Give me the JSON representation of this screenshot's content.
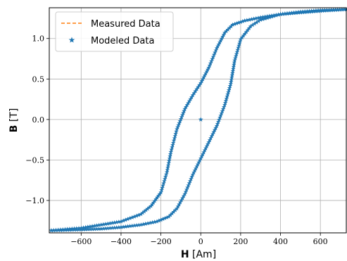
{
  "chart_data": {
    "type": "line",
    "title": "",
    "xlabel_bold": "H",
    "xlabel_unit": "[Am]",
    "ylabel_bold": "B",
    "ylabel_unit": "[T]",
    "xlim": [
      -760,
      730
    ],
    "ylim": [
      -1.4,
      1.38
    ],
    "grid": true,
    "legend_position": "top-left",
    "x_ticks": [
      {
        "value": -600,
        "label": "−600"
      },
      {
        "value": -400,
        "label": "−400"
      },
      {
        "value": -200,
        "label": "−200"
      },
      {
        "value": 0,
        "label": "0"
      },
      {
        "value": 200,
        "label": "200"
      },
      {
        "value": 400,
        "label": "400"
      },
      {
        "value": 600,
        "label": "600"
      }
    ],
    "y_ticks": [
      {
        "value": -1.0,
        "label": "−1.0"
      },
      {
        "value": -0.5,
        "label": "−0.5"
      },
      {
        "value": 0.0,
        "label": "0.0"
      },
      {
        "value": 0.5,
        "label": "0.5"
      },
      {
        "value": 1.0,
        "label": "1.0"
      }
    ],
    "series": [
      {
        "name": "Measured Data",
        "style": "dashed-line",
        "color": "#ff7f0e",
        "upper_branch": [
          [
            -750,
            -1.37
          ],
          [
            -600,
            -1.34
          ],
          [
            -400,
            -1.26
          ],
          [
            -300,
            -1.17
          ],
          [
            -250,
            -1.07
          ],
          [
            -200,
            -0.9
          ],
          [
            -170,
            -0.65
          ],
          [
            -150,
            -0.4
          ],
          [
            -120,
            -0.12
          ],
          [
            -80,
            0.13
          ],
          [
            -40,
            0.3
          ],
          [
            0,
            0.45
          ],
          [
            40,
            0.64
          ],
          [
            80,
            0.88
          ],
          [
            120,
            1.07
          ],
          [
            160,
            1.17
          ],
          [
            220,
            1.22
          ],
          [
            300,
            1.26
          ],
          [
            400,
            1.3
          ],
          [
            500,
            1.32
          ],
          [
            600,
            1.34
          ],
          [
            730,
            1.36
          ]
        ],
        "lower_branch": [
          [
            730,
            1.36
          ],
          [
            600,
            1.35
          ],
          [
            500,
            1.33
          ],
          [
            400,
            1.3
          ],
          [
            300,
            1.23
          ],
          [
            250,
            1.15
          ],
          [
            200,
            0.99
          ],
          [
            170,
            0.73
          ],
          [
            150,
            0.44
          ],
          [
            120,
            0.18
          ],
          [
            80,
            -0.08
          ],
          [
            40,
            -0.28
          ],
          [
            0,
            -0.48
          ],
          [
            -40,
            -0.68
          ],
          [
            -80,
            -0.92
          ],
          [
            -120,
            -1.1
          ],
          [
            -160,
            -1.2
          ],
          [
            -220,
            -1.26
          ],
          [
            -300,
            -1.3
          ],
          [
            -400,
            -1.33
          ],
          [
            -500,
            -1.35
          ],
          [
            -600,
            -1.36
          ],
          [
            -750,
            -1.37
          ]
        ]
      },
      {
        "name": "Modeled Data",
        "style": "star-markers",
        "color": "#1f77b4",
        "extra_points": [
          [
            0,
            0.0
          ]
        ]
      }
    ]
  }
}
